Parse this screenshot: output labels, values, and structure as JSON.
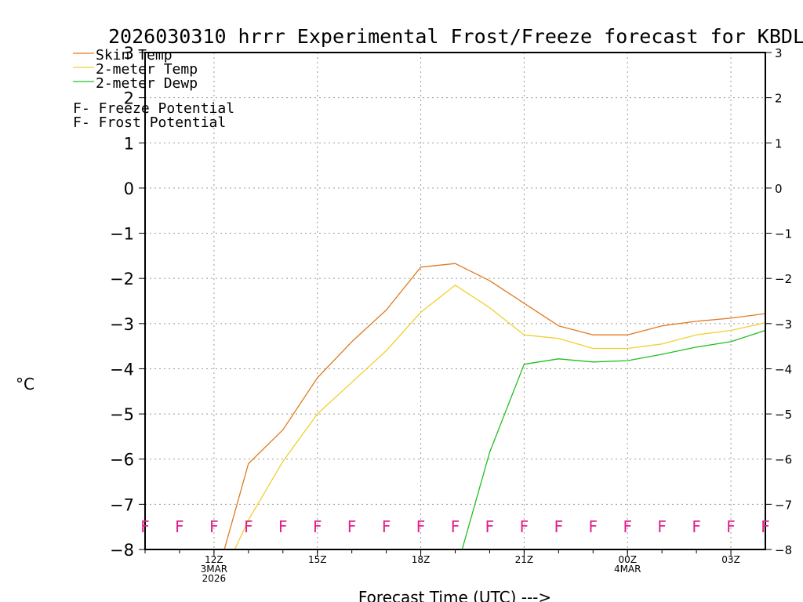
{
  "chart_data": {
    "type": "line",
    "title": "2026030310 hrrr Experimental Frost/Freeze forecast for KBDL",
    "xlabel": "Forecast Time (UTC) --->",
    "ylabel": "°C",
    "ylim": [
      -8,
      3
    ],
    "yticks": [
      3,
      2,
      1,
      0,
      -1,
      -2,
      -3,
      -4,
      -5,
      -6,
      -7,
      -8
    ],
    "yticks_display": [
      "3",
      "2",
      "1",
      "0",
      "−1",
      "−2",
      "−3",
      "−4",
      "−5",
      "−6",
      "−7",
      "−8"
    ],
    "x_hours": [
      8,
      9,
      10,
      11,
      12,
      13,
      14,
      15,
      16,
      17,
      18,
      19,
      20,
      21,
      22,
      23,
      24,
      25,
      26,
      27
    ],
    "xlim": [
      10,
      28
    ],
    "xticks": [
      {
        "hour": 12,
        "lines": [
          "12Z",
          "3MAR",
          "2026"
        ]
      },
      {
        "hour": 15,
        "lines": [
          "15Z"
        ]
      },
      {
        "hour": 18,
        "lines": [
          "18Z"
        ]
      },
      {
        "hour": 21,
        "lines": [
          "21Z"
        ]
      },
      {
        "hour": 24,
        "lines": [
          "00Z",
          "4MAR"
        ]
      },
      {
        "hour": 27,
        "lines": [
          "03Z"
        ]
      }
    ],
    "series": [
      {
        "name": "Skin Temp",
        "color": "#e07a20",
        "x": [
          12.3,
          13,
          14,
          15,
          16,
          17,
          18,
          19,
          20,
          21,
          22,
          23,
          24,
          25,
          26,
          27,
          28
        ],
        "values": [
          -8,
          -6.1,
          -5.35,
          -4.2,
          -3.4,
          -2.7,
          -1.75,
          -1.67,
          -2.05,
          -2.55,
          -3.05,
          -3.25,
          -3.25,
          -3.05,
          -2.95,
          -2.88,
          -2.78
        ]
      },
      {
        "name": "2-meter Temp",
        "color": "#f0d030",
        "x": [
          12.6,
          13,
          14,
          15,
          16,
          17,
          18,
          19,
          20,
          21,
          22,
          23,
          24,
          25,
          26,
          27,
          28
        ],
        "values": [
          -8,
          -7.35,
          -6.05,
          -5.0,
          -4.3,
          -3.6,
          -2.75,
          -2.15,
          -2.65,
          -3.25,
          -3.33,
          -3.55,
          -3.55,
          -3.45,
          -3.25,
          -3.15,
          -2.98
        ]
      },
      {
        "name": "2-meter Dewp",
        "color": "#20c020",
        "x": [
          19.2,
          20,
          21,
          22,
          23,
          24,
          25,
          26,
          27,
          28
        ],
        "values": [
          -8,
          -5.85,
          -3.9,
          -3.78,
          -3.85,
          -3.82,
          -3.68,
          -3.52,
          -3.4,
          -3.15
        ]
      }
    ],
    "flags": {
      "letter": "F",
      "level": -7.5,
      "color": "#e0208a",
      "hours": [
        10,
        11,
        12,
        13,
        14,
        15,
        16,
        17,
        18,
        19,
        20,
        21,
        22,
        23,
        24,
        25,
        26,
        27,
        28
      ]
    },
    "legend": [
      {
        "label": "Skin Temp",
        "color": "#e07a20"
      },
      {
        "label": "2-meter Temp",
        "color": "#f0d030"
      },
      {
        "label": "2-meter Dewp",
        "color": "#20c020"
      }
    ],
    "key": [
      {
        "letter": "F",
        "text": " - Freeze Potential",
        "color": "#e0208a"
      },
      {
        "letter": "F",
        "text": " - Frost Potential",
        "color": "#3050e0"
      }
    ]
  }
}
